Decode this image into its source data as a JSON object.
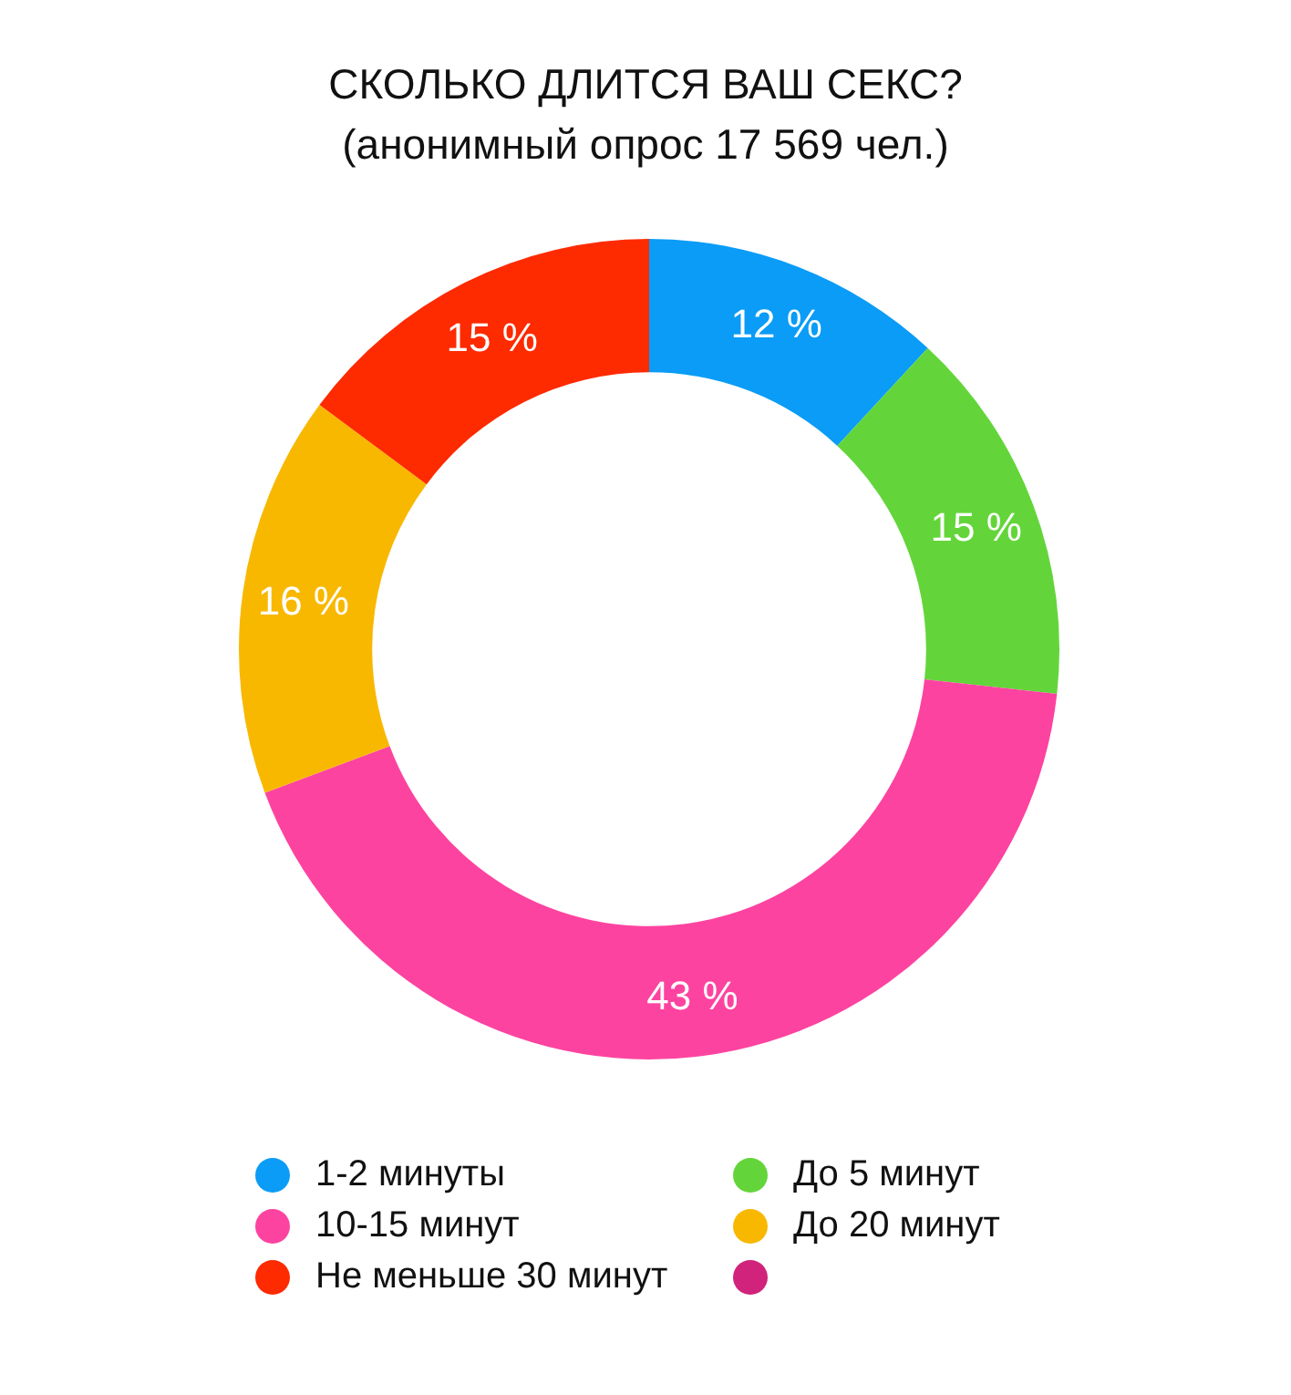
{
  "chart_data": {
    "type": "donut",
    "title": "СКОЛЬКО ДЛИТСЯ ВАШ СЕКС?",
    "subtitle": "(анонимный опрос 17 569 чел.)",
    "categories": [
      "1-2 минуты",
      "До 5 минут",
      "10-15 минут",
      "До 20 минут",
      "Не меньше 30 минут",
      null
    ],
    "values": [
      12,
      15,
      43,
      16,
      15,
      0
    ],
    "colors": [
      "#0a9cf6",
      "#63d53a",
      "#fd43a0",
      "#f8b800",
      "#fe2a00",
      "#d1237b"
    ],
    "value_labels": [
      "12 %",
      "15 %",
      "43 %",
      "16 %",
      "15 %",
      null
    ],
    "legend": "bottom"
  }
}
